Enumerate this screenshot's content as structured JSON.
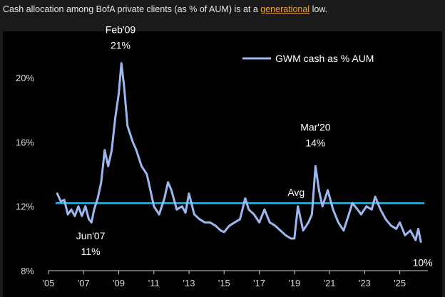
{
  "caption": {
    "before": "Cash allocation among BofA private clients (as % of AUM) is at a ",
    "link": "generational",
    "after": " low."
  },
  "colors": {
    "series": "#9cb8ef",
    "avg_line": "#2ab6e8",
    "background": "#000000",
    "caption_link": "#e8a33c"
  },
  "chart_data": {
    "type": "line",
    "title": "",
    "xlabel": "",
    "ylabel": "",
    "xlim": [
      2005.0,
      2026.6
    ],
    "ylim": [
      8,
      22
    ],
    "x_ticks": [
      2005,
      2007,
      2009,
      2011,
      2013,
      2015,
      2017,
      2019,
      2021,
      2023,
      2025
    ],
    "x_tick_labels": [
      "'05",
      "'07",
      "'09",
      "'11",
      "'13",
      "'15",
      "'17",
      "'19",
      "'21",
      "'23",
      "'25"
    ],
    "y_ticks": [
      8,
      12,
      16,
      20
    ],
    "y_tick_labels": [
      "8%",
      "12%",
      "16%",
      "20%"
    ],
    "legend": {
      "position": "top-right",
      "entries": [
        "GWM cash as % AUM"
      ]
    },
    "avg_line": {
      "label": "Avg",
      "value": 12.2
    },
    "annotations": [
      {
        "lines": [
          "Feb'09",
          "21%"
        ],
        "x": 2009.1,
        "y": 21.0
      },
      {
        "lines": [
          "Mar'20",
          "14%"
        ],
        "x": 2020.2,
        "y": 14.5
      },
      {
        "lines": [
          "Jun'07",
          "11%"
        ],
        "x": 2007.4,
        "y": 11.5
      },
      {
        "lines": [
          "10%"
        ],
        "x": 2026.3,
        "y": 9.7
      }
    ],
    "series": [
      {
        "name": "GWM cash as % AUM",
        "x": [
          2005.5,
          2005.7,
          2005.9,
          2006.1,
          2006.3,
          2006.5,
          2006.7,
          2006.9,
          2007.1,
          2007.3,
          2007.45,
          2007.6,
          2007.8,
          2008.0,
          2008.2,
          2008.4,
          2008.6,
          2008.8,
          2009.0,
          2009.15,
          2009.3,
          2009.5,
          2009.8,
          2010.0,
          2010.3,
          2010.6,
          2010.8,
          2011.0,
          2011.3,
          2011.6,
          2011.8,
          2012.0,
          2012.3,
          2012.6,
          2012.8,
          2013.0,
          2013.3,
          2013.6,
          2013.9,
          2014.2,
          2014.5,
          2014.8,
          2015.0,
          2015.3,
          2015.6,
          2015.9,
          2016.2,
          2016.4,
          2016.7,
          2017.0,
          2017.3,
          2017.6,
          2017.9,
          2018.2,
          2018.5,
          2018.8,
          2019.0,
          2019.2,
          2019.5,
          2019.8,
          2020.0,
          2020.2,
          2020.4,
          2020.6,
          2020.9,
          2021.2,
          2021.5,
          2021.8,
          2022.1,
          2022.3,
          2022.6,
          2022.8,
          2023.1,
          2023.4,
          2023.6,
          2023.9,
          2024.2,
          2024.5,
          2024.8,
          2025.0,
          2025.3,
          2025.6,
          2025.9,
          2026.05,
          2026.2
        ],
        "y": [
          12.8,
          12.3,
          12.4,
          11.5,
          11.8,
          11.4,
          12.0,
          11.4,
          12.0,
          11.2,
          11.0,
          11.8,
          12.5,
          13.5,
          15.5,
          14.5,
          15.5,
          17.5,
          19.0,
          20.9,
          19.5,
          17.0,
          16.0,
          15.5,
          14.5,
          14.0,
          13.0,
          12.0,
          11.5,
          12.5,
          13.5,
          13.0,
          11.8,
          12.0,
          11.6,
          12.8,
          11.5,
          11.2,
          11.0,
          11.0,
          10.8,
          10.5,
          10.4,
          10.8,
          11.0,
          11.2,
          12.5,
          11.8,
          11.5,
          11.0,
          11.8,
          11.0,
          10.8,
          10.5,
          10.2,
          10.0,
          10.0,
          12.0,
          10.5,
          11.0,
          11.5,
          14.5,
          13.0,
          12.0,
          13.0,
          11.8,
          11.0,
          10.5,
          11.5,
          12.2,
          11.8,
          11.5,
          12.0,
          11.8,
          12.6,
          11.8,
          11.2,
          10.8,
          10.6,
          11.0,
          10.2,
          10.5,
          9.9,
          10.6,
          9.8
        ]
      }
    ]
  }
}
